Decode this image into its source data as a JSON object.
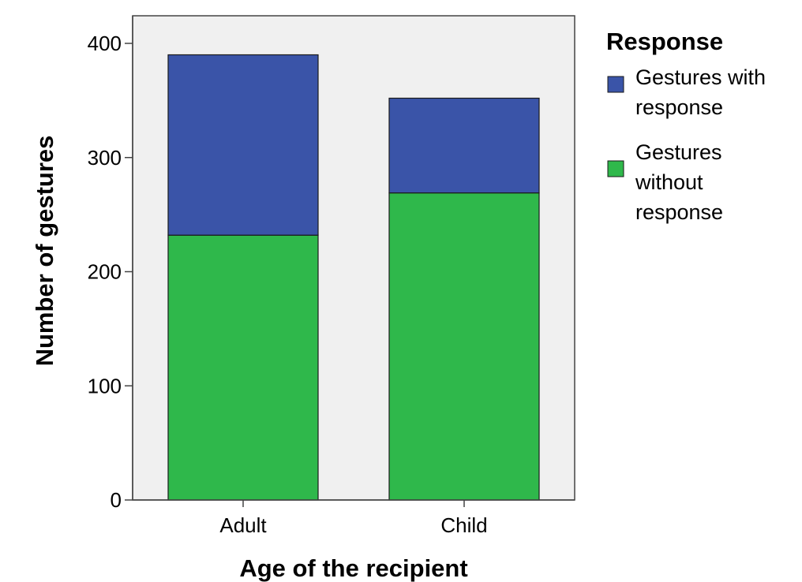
{
  "chart_data": {
    "type": "bar",
    "stacked": true,
    "categories": [
      "Adult",
      "Child"
    ],
    "series": [
      {
        "name": "Gestures without response",
        "color": "#2fb84b",
        "values": [
          232,
          269
        ]
      },
      {
        "name": "Gestures with response",
        "color": "#3a54a8",
        "values": [
          158,
          83
        ]
      }
    ],
    "xlabel": "Age of the recipient",
    "ylabel": "Number of gestures",
    "ylim": [
      0,
      400
    ],
    "yticks": [
      0,
      100,
      200,
      300,
      400
    ],
    "legend": {
      "title": "Response",
      "position": "right",
      "entries": [
        {
          "lines": [
            "Gestures with",
            "response"
          ],
          "color": "#3a54a8"
        },
        {
          "lines": [
            "Gestures",
            "without",
            "response"
          ],
          "color": "#2fb84b"
        }
      ]
    },
    "plot_background": "#f0f0f0",
    "grid": false
  }
}
